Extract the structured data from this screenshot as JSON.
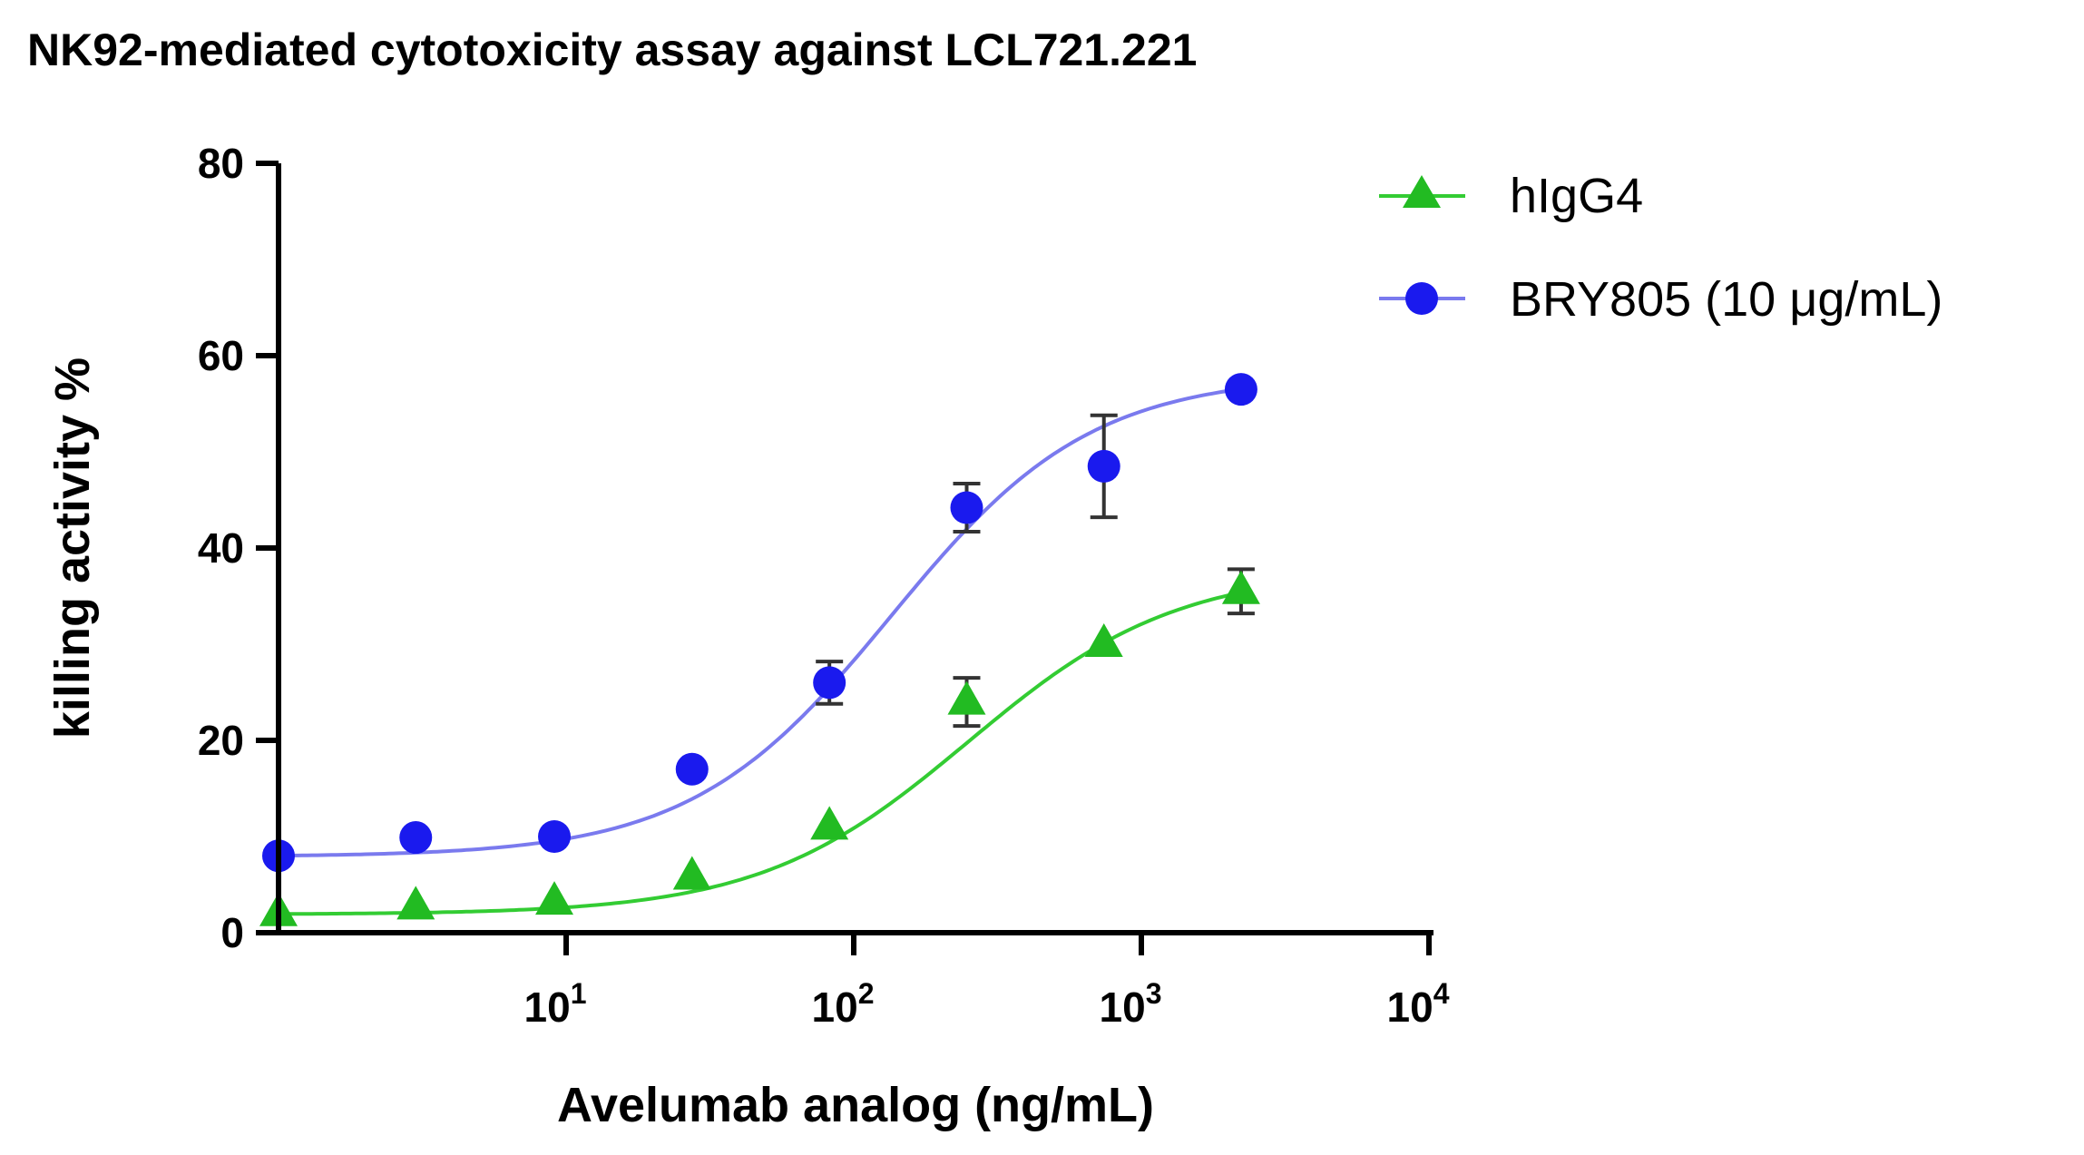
{
  "chart_data": {
    "type": "scatter",
    "title": "NK92-mediated cytotoxicity assay against LCL721.221",
    "xlabel": "Avelumab analog (ng/mL)",
    "ylabel": "killing activity %",
    "xscale": "log",
    "xlim": [
      1,
      10000
    ],
    "ylim": [
      0,
      80
    ],
    "yticks": [
      0,
      20,
      40,
      60,
      80
    ],
    "xticks": [
      {
        "value": 10,
        "base": "10",
        "exp": "1"
      },
      {
        "value": 100,
        "base": "10",
        "exp": "2"
      },
      {
        "value": 1000,
        "base": "10",
        "exp": "3"
      },
      {
        "value": 10000,
        "base": "10",
        "exp": "4"
      }
    ],
    "legend_position": "top-right",
    "series": [
      {
        "name": "hIgG4",
        "marker": "triangle",
        "color": "#22bb22",
        "curve_color": "#33cc33",
        "x": [
          1.0,
          3.0,
          9.1,
          27.4,
          82.3,
          247,
          741,
          2222
        ],
        "y": [
          2,
          2.7,
          3.2,
          5.8,
          11,
          24,
          30,
          35.5
        ],
        "error": [
          0,
          0,
          0,
          0,
          0,
          2.5,
          0,
          2.3
        ],
        "fit": {
          "bottom": 1.9,
          "top": 37.8,
          "ec50": 250,
          "hill": 1.2
        }
      },
      {
        "name": "BRY805 (10 μg/mL)",
        "marker": "circle",
        "color": "#1a1aee",
        "curve_color": "#7a7aee",
        "x": [
          1.0,
          3.0,
          9.1,
          27.4,
          82.3,
          247,
          741,
          2222
        ],
        "y": [
          8,
          9.9,
          10,
          17,
          26,
          44.2,
          48.5,
          56.5
        ],
        "error": [
          0,
          0,
          0,
          0,
          2.2,
          2.5,
          5.3,
          0
        ],
        "fit": {
          "bottom": 7.9,
          "top": 58,
          "ec50": 135,
          "hill": 1.25
        }
      }
    ]
  }
}
